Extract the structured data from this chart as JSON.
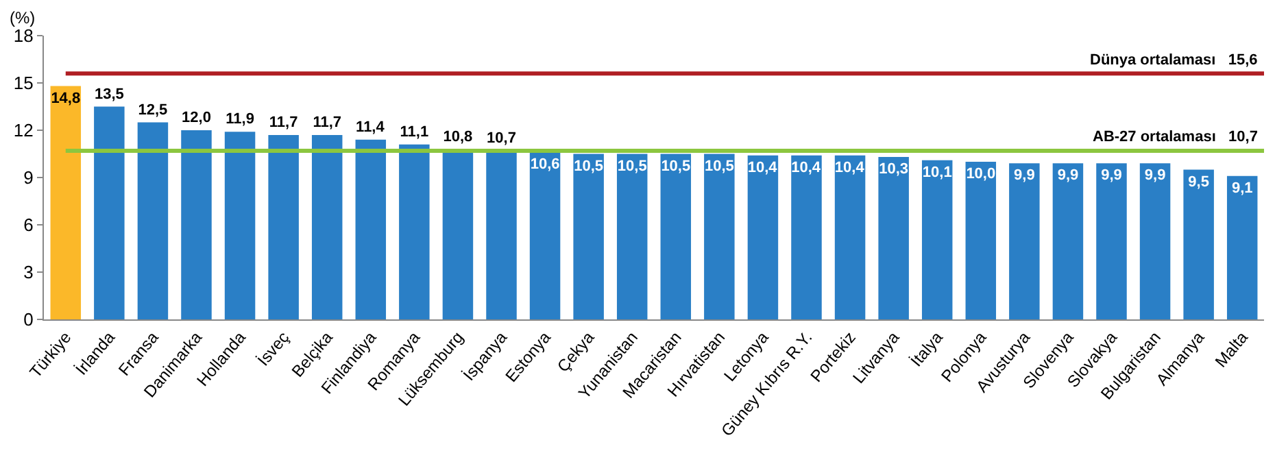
{
  "chart_data": {
    "type": "bar",
    "ylabel": "(%)",
    "categories": [
      "Türkiye",
      "İrlanda",
      "Fransa",
      "Danimarka",
      "Hollanda",
      "İsveç",
      "Belçika",
      "Finlandiya",
      "Romanya",
      "Lüksemburg",
      "İspanya",
      "Estonya",
      "Çekya",
      "Yunanistan",
      "Macaristan",
      "Hırvatistan",
      "Letonya",
      "Güney Kıbrıs R.Y.",
      "Portekiz",
      "Litvanya",
      "İtalya",
      "Polonya",
      "Avusturya",
      "Slovenya",
      "Slovakya",
      "Bulgaristan",
      "Almanya",
      "Malta"
    ],
    "values": [
      14.8,
      13.5,
      12.5,
      12.0,
      11.9,
      11.7,
      11.7,
      11.4,
      11.1,
      10.8,
      10.7,
      10.6,
      10.5,
      10.5,
      10.5,
      10.5,
      10.4,
      10.4,
      10.4,
      10.3,
      10.1,
      10.0,
      9.9,
      9.9,
      9.9,
      9.9,
      9.5,
      9.1
    ],
    "value_labels": [
      "14,8",
      "13,5",
      "12,5",
      "12,0",
      "11,9",
      "11,7",
      "11,7",
      "11,4",
      "11,1",
      "10,8",
      "10,7",
      "10,6",
      "10,5",
      "10,5",
      "10,5",
      "10,5",
      "10,4",
      "10,4",
      "10,4",
      "10,3",
      "10,1",
      "10,0",
      "9,9",
      "9,9",
      "9,9",
      "9,9",
      "9,5",
      "9,1"
    ],
    "colors": [
      "#fbb829",
      "#2a7fc6",
      "#2a7fc6",
      "#2a7fc6",
      "#2a7fc6",
      "#2a7fc6",
      "#2a7fc6",
      "#2a7fc6",
      "#2a7fc6",
      "#2a7fc6",
      "#2a7fc6",
      "#2a7fc6",
      "#2a7fc6",
      "#2a7fc6",
      "#2a7fc6",
      "#2a7fc6",
      "#2a7fc6",
      "#2a7fc6",
      "#2a7fc6",
      "#2a7fc6",
      "#2a7fc6",
      "#2a7fc6",
      "#2a7fc6",
      "#2a7fc6",
      "#2a7fc6",
      "#2a7fc6",
      "#2a7fc6",
      "#2a7fc6"
    ],
    "ylim": [
      0,
      18
    ],
    "yticks": [
      0,
      3,
      6,
      9,
      12,
      15,
      18
    ],
    "ref_lines": [
      {
        "axis": "y",
        "value": 15.6,
        "label": "Dünya ortalaması   15,6",
        "color": "#b01e23"
      },
      {
        "axis": "y",
        "value": 10.7,
        "label": "AB-27 ortalaması   10,7",
        "color": "#8cc63f"
      }
    ]
  }
}
